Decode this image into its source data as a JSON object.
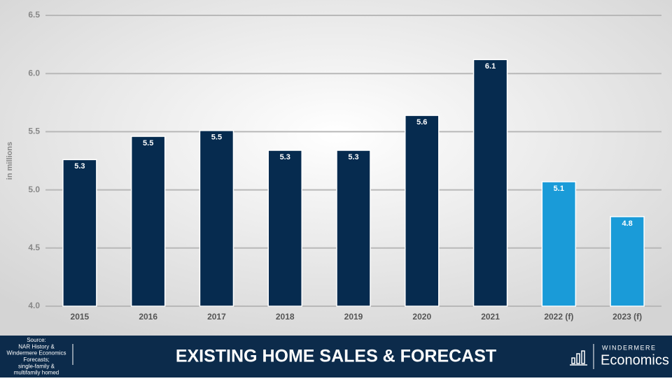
{
  "chart_data": {
    "type": "bar",
    "y_label": "in millions",
    "categories": [
      "2015",
      "2016",
      "2017",
      "2018",
      "2019",
      "2020",
      "2021",
      "2022 (f)",
      "2023 (f)"
    ],
    "values": [
      5.26,
      5.46,
      5.51,
      5.34,
      5.34,
      5.64,
      6.12,
      5.07,
      4.77
    ],
    "value_labels": [
      "5.3",
      "5.5",
      "5.5",
      "5.3",
      "5.3",
      "5.6",
      "6.1",
      "5.1",
      "4.8"
    ],
    "colors": [
      "#062b4f",
      "#062b4f",
      "#062b4f",
      "#062b4f",
      "#062b4f",
      "#062b4f",
      "#062b4f",
      "#1a9bd8",
      "#1a9bd8"
    ],
    "ylim": [
      4.0,
      6.5
    ],
    "yticks": [
      {
        "value": 4,
        "label": "4.0"
      },
      4.5,
      {
        "value": 5,
        "label": "5.0"
      },
      5.5,
      {
        "value": 6,
        "label": "6.0"
      },
      6.5
    ],
    "grid": true
  },
  "footer": {
    "source_lines": [
      "Source:",
      "NAR History &",
      "Windermere Economics",
      "Forecasts;",
      "single-family &",
      "multifamily homed"
    ],
    "title": "EXISTING HOME SALES & FORECAST",
    "logo_top": "WINDERMERE",
    "logo_bottom": "Economics"
  }
}
